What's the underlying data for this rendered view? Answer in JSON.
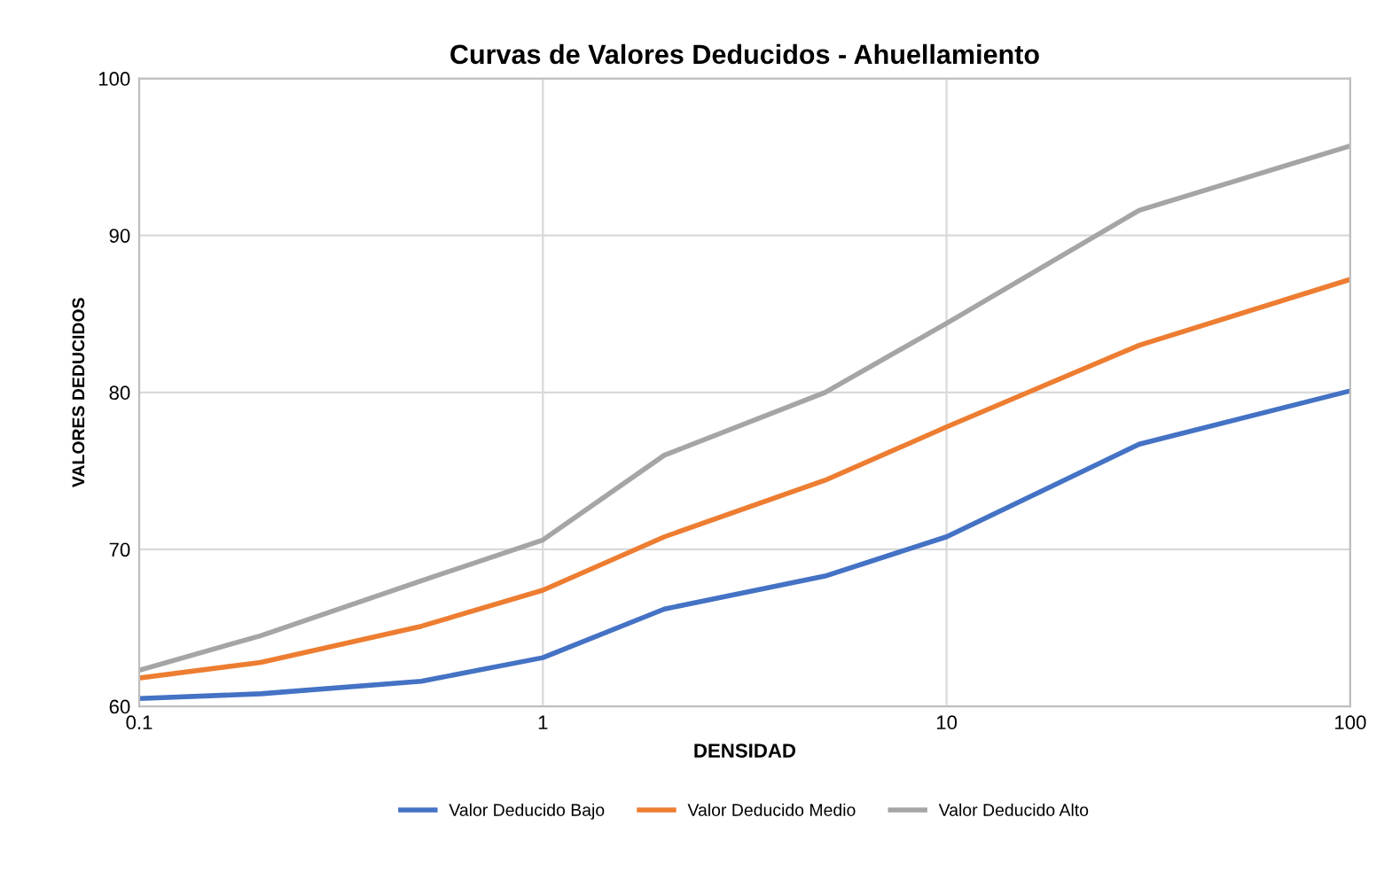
{
  "chart_data": {
    "type": "line",
    "title": "Curvas de Valores Deducidos - Ahuellamiento",
    "xlabel": "DENSIDAD",
    "ylabel": "VALORES DEDUCIDOS",
    "log": "x",
    "x": [
      0.1,
      0.2,
      0.5,
      1,
      2,
      5,
      10,
      30,
      100
    ],
    "series": [
      {
        "name": "Valor Deducido Bajo",
        "color": "#4472c4",
        "values": [
          60.5,
          60.8,
          61.6,
          63.1,
          66.2,
          68.3,
          70.8,
          76.7,
          80.1
        ]
      },
      {
        "name": "Valor Deducido Medio",
        "color": "#ed7d31",
        "values": [
          61.8,
          62.8,
          65.1,
          67.4,
          70.8,
          74.4,
          77.8,
          83.0,
          87.2
        ]
      },
      {
        "name": "Valor Deducido Alto",
        "color": "#a5a5a5",
        "values": [
          62.3,
          64.5,
          68.0,
          70.6,
          76.0,
          80.0,
          84.4,
          91.6,
          95.7
        ]
      }
    ],
    "xlim": [
      0.1,
      100
    ],
    "xticks": [
      0.1,
      1,
      10,
      100
    ],
    "ylim": [
      60,
      100
    ],
    "yticks": [
      60,
      70,
      80,
      90,
      100
    ],
    "grid": true,
    "legend": "bottom",
    "marker": "none",
    "line_style": "solid"
  }
}
